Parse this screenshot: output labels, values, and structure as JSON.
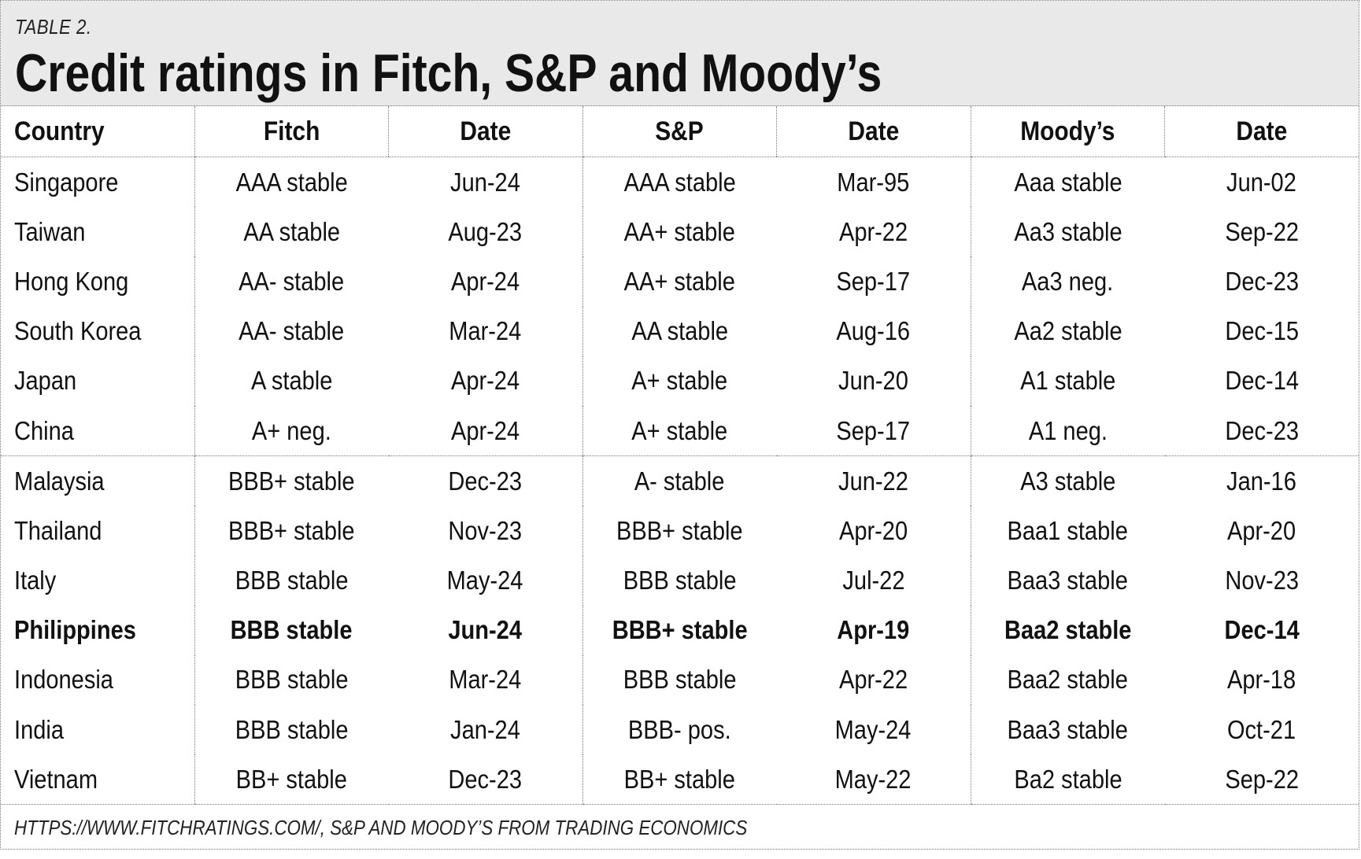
{
  "header": {
    "label": "TABLE 2.",
    "title": "Credit ratings in Fitch, S&P and Moody’s"
  },
  "table": {
    "columns": [
      "Country",
      "Fitch",
      "Date",
      "S&P",
      "Date",
      "Moody’s",
      "Date"
    ],
    "rows": [
      [
        "Singapore",
        "AAA stable",
        "Jun-24",
        "AAA stable",
        "Mar-95",
        "Aaa stable",
        "Jun-02"
      ],
      [
        "Taiwan",
        "AA stable",
        "Aug-23",
        "AA+ stable",
        "Apr-22",
        "Aa3 stable",
        "Sep-22"
      ],
      [
        "Hong Kong",
        "AA- stable",
        "Apr-24",
        "AA+ stable",
        "Sep-17",
        "Aa3 neg.",
        "Dec-23"
      ],
      [
        "South Korea",
        "AA- stable",
        "Mar-24",
        "AA stable",
        "Aug-16",
        "Aa2 stable",
        "Dec-15"
      ],
      [
        "Japan",
        "A stable",
        "Apr-24",
        "A+ stable",
        "Jun-20",
        "A1 stable",
        "Dec-14"
      ],
      [
        "China",
        "A+ neg.",
        "Apr-24",
        "A+ stable",
        "Sep-17",
        "A1 neg.",
        "Dec-23"
      ],
      [
        "Malaysia",
        "BBB+ stable",
        "Dec-23",
        "A-  stable",
        "Jun-22",
        "A3 stable",
        "Jan-16"
      ],
      [
        "Thailand",
        "BBB+ stable",
        "Nov-23",
        "BBB+ stable",
        "Apr-20",
        "Baa1 stable",
        "Apr-20"
      ],
      [
        "Italy",
        "BBB stable",
        "May-24",
        "BBB stable",
        "Jul-22",
        "Baa3 stable",
        "Nov-23"
      ],
      [
        "Philippines",
        "BBB stable",
        "Jun-24",
        "BBB+ stable",
        "Apr-19",
        "Baa2 stable",
        "Dec-14"
      ],
      [
        "Indonesia",
        "BBB stable",
        "Mar-24",
        "BBB stable",
        "Apr-22",
        "Baa2 stable",
        "Apr-18"
      ],
      [
        "India",
        "BBB stable",
        "Jan-24",
        "BBB- pos.",
        "May-24",
        "Baa3 stable",
        "Oct-21"
      ],
      [
        "Vietnam",
        "BB+ stable",
        "Dec-23",
        "BB+  stable",
        "May-22",
        "Ba2  stable",
        "Sep-22"
      ]
    ]
  },
  "footer": {
    "source": "HTTPS://WWW.FITCHRATINGS.COM/, S&P AND MOODY’S FROM TRADING ECONOMICS"
  }
}
